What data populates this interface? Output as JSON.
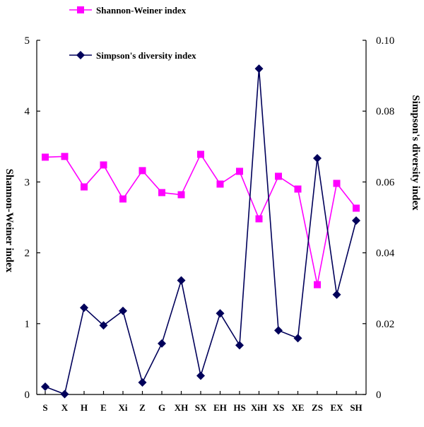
{
  "chart_data": {
    "type": "line",
    "categories": [
      "S",
      "X",
      "H",
      "E",
      "Xi",
      "Z",
      "G",
      "XH",
      "SX",
      "EH",
      "HS",
      "XiH",
      "XS",
      "XE",
      "ZS",
      "EX",
      "SH"
    ],
    "series": [
      {
        "name": "Shannon-Weiner index",
        "axis": "left",
        "color": "#ff00ff",
        "marker": "square",
        "values": [
          3.35,
          3.36,
          2.93,
          3.24,
          2.76,
          3.16,
          2.85,
          2.82,
          3.39,
          2.97,
          3.15,
          2.48,
          3.08,
          2.9,
          1.55,
          2.98,
          2.63
        ]
      },
      {
        "name": "Simpson's diversity index",
        "axis": "right",
        "color": "#00005a",
        "marker": "diamond",
        "values": [
          0.0022,
          0.0001,
          0.0245,
          0.0195,
          0.0236,
          0.0034,
          0.0144,
          0.0322,
          0.0053,
          0.0229,
          0.0139,
          0.092,
          0.0181,
          0.0159,
          0.0667,
          0.0282,
          0.0491
        ]
      }
    ],
    "ylabel": "Shannon-Weiner  index",
    "y2label": "Simpson's  diversity  index",
    "ylim": [
      0,
      5
    ],
    "y2lim": [
      0,
      0.1
    ],
    "yticks": [
      "0",
      "1",
      "2",
      "3",
      "4",
      "5"
    ],
    "y2ticks": [
      "0",
      "0.02",
      "0.04",
      "0.06",
      "0.08",
      "0.10"
    ],
    "grid": false,
    "legend_position": "top-left"
  }
}
